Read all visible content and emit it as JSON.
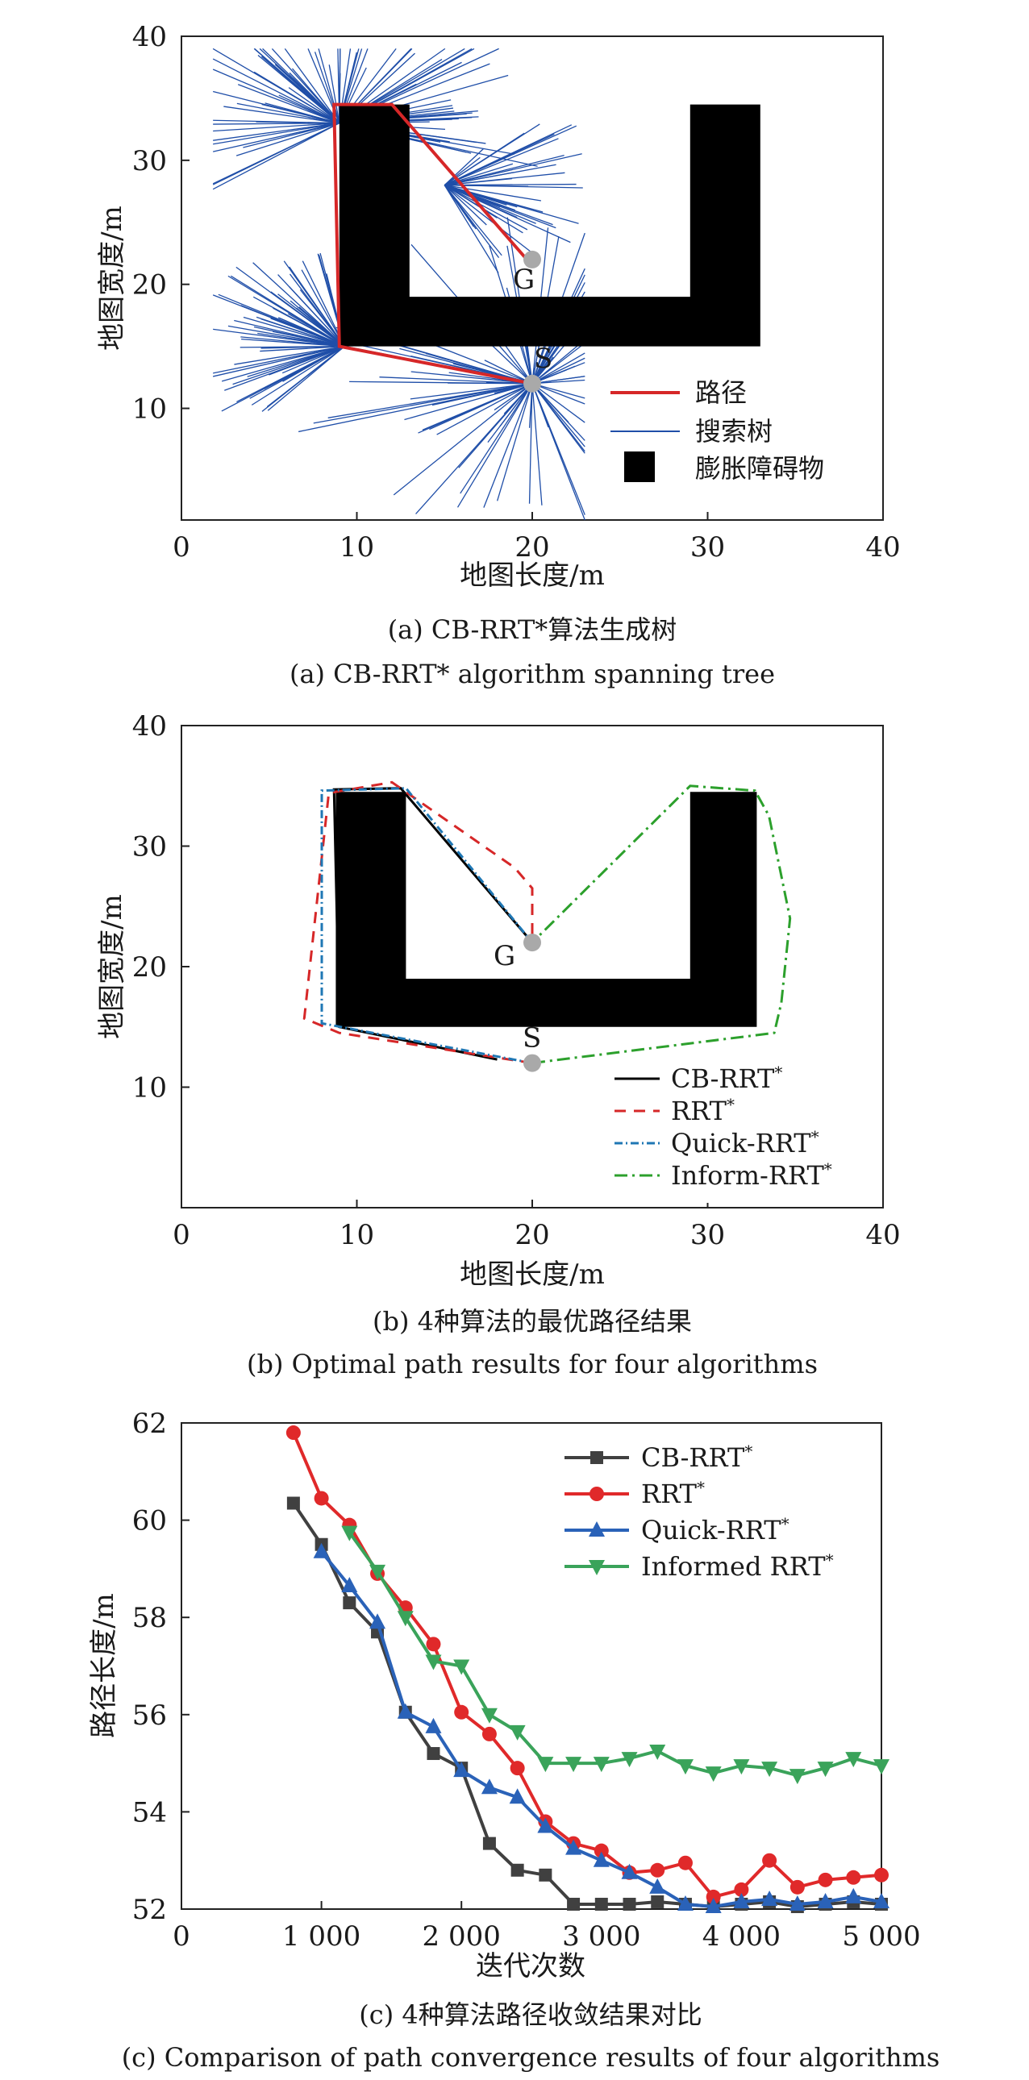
{
  "chart_data": [
    {
      "type": "scatter",
      "panel": "a",
      "xlabel": "地图长度/m",
      "ylabel": "地图宽度/m",
      "xlim": [
        0,
        40
      ],
      "ylim": [
        1,
        40
      ],
      "xticks": [
        "0",
        "10",
        "20",
        "30",
        "40"
      ],
      "yticks": [
        "10",
        "20",
        "30",
        "40"
      ],
      "caption_cn": "(a) CB-RRT*算法生成树",
      "caption_en": "(a) CB-RRT* algorithm spanning tree",
      "start": {
        "label": "S",
        "x": 20,
        "y": 12
      },
      "goal": {
        "label": "G",
        "x": 20,
        "y": 22
      },
      "obstacle": [
        [
          9,
          15
        ],
        [
          33,
          15
        ],
        [
          33,
          34.5
        ],
        [
          29,
          34.5
        ],
        [
          29,
          19
        ],
        [
          13,
          19
        ],
        [
          13,
          34.5
        ],
        [
          9,
          34.5
        ]
      ],
      "path": [
        [
          20,
          12
        ],
        [
          9,
          15
        ],
        [
          8.7,
          34.5
        ],
        [
          12,
          34.5
        ],
        [
          20,
          21.5
        ]
      ],
      "tree_roots": [
        [
          20,
          12
        ],
        [
          9.3,
          15
        ],
        [
          9,
          34
        ],
        [
          16,
          27
        ]
      ],
      "legend": [
        {
          "label": "路径",
          "color": "#d62728",
          "style": "line"
        },
        {
          "label": "搜索树",
          "color": "#1f4ea8",
          "style": "thin"
        },
        {
          "label": "膨胀障碍物",
          "color": "#000000",
          "style": "box"
        }
      ]
    },
    {
      "type": "line",
      "panel": "b",
      "xlabel": "地图长度/m",
      "ylabel": "地图宽度/m",
      "xlim": [
        0,
        40
      ],
      "ylim": [
        0,
        40
      ],
      "xticks": [
        "0",
        "10",
        "20",
        "30",
        "40"
      ],
      "yticks": [
        "10",
        "20",
        "30",
        "40"
      ],
      "caption_cn": "(b) 4种算法的最优路径结果",
      "caption_en": "(b) Optimal path results for four algorithms",
      "start": {
        "label": "S",
        "x": 20,
        "y": 12
      },
      "goal": {
        "label": "G",
        "x": 20,
        "y": 22
      },
      "obstacle": [
        [
          8.8,
          15
        ],
        [
          32.8,
          15
        ],
        [
          32.8,
          34.5
        ],
        [
          29,
          34.5
        ],
        [
          29,
          19
        ],
        [
          12.8,
          19
        ],
        [
          12.8,
          34.5
        ],
        [
          8.8,
          34.5
        ]
      ],
      "series": [
        {
          "name": "CB-RRT*",
          "color": "#000000",
          "dash": "",
          "points": [
            [
              18,
              12.3
            ],
            [
              9,
              15
            ],
            [
              8.7,
              34.7
            ],
            [
              12.5,
              34.8
            ],
            [
              20,
              22
            ]
          ]
        },
        {
          "name": "RRT*",
          "color": "#d62728",
          "dash": "14 10",
          "points": [
            [
              20,
              12
            ],
            [
              9,
              14.5
            ],
            [
              7,
              15.7
            ],
            [
              8.4,
              34.4
            ],
            [
              12,
              35.3
            ],
            [
              19,
              28.2
            ],
            [
              20,
              26.5
            ],
            [
              20,
              22
            ]
          ]
        },
        {
          "name": "Quick-RRT*",
          "color": "#1f77b4",
          "dash": "10 4 2 4",
          "points": [
            [
              20,
              12
            ],
            [
              8,
              15.3
            ],
            [
              8,
              34.6
            ],
            [
              12.8,
              34.8
            ],
            [
              20,
              22
            ]
          ]
        },
        {
          "name": "Inform-RRT*",
          "color": "#2ca02c",
          "dash": "16 6 3 6",
          "points": [
            [
              20,
              12
            ],
            [
              33.8,
              14.5
            ],
            [
              34.2,
              17
            ],
            [
              34.7,
              24
            ],
            [
              33.5,
              32.5
            ],
            [
              32.7,
              34.6
            ],
            [
              29,
              35
            ],
            [
              20,
              22
            ]
          ]
        }
      ],
      "legend_labels": [
        "CB-RRT",
        "RRT",
        "Quick-RRT",
        "Inform-RRT"
      ],
      "legend_sup": "*"
    },
    {
      "type": "line",
      "panel": "c",
      "xlabel": "迭代次数",
      "ylabel": "路径长度/m",
      "xlim": [
        0,
        5000
      ],
      "ylim": [
        52,
        62
      ],
      "xticks": [
        "0",
        "1 000",
        "2 000",
        "3 000",
        "4 000",
        "5 000"
      ],
      "yticks": [
        "52",
        "54",
        "56",
        "58",
        "60",
        "62"
      ],
      "caption_cn": "(c) 4种算法路径收敛结果对比",
      "caption_en": "(c) Comparison of path convergence results of four algorithms",
      "series": [
        {
          "name": "CB-RRT*",
          "color": "#404040",
          "marker": "square",
          "points": [
            [
              800,
              60.35
            ],
            [
              1000,
              59.5
            ],
            [
              1200,
              58.3
            ],
            [
              1400,
              57.7
            ],
            [
              1600,
              56.05
            ],
            [
              1800,
              55.2
            ],
            [
              2000,
              54.9
            ],
            [
              2200,
              53.35
            ],
            [
              2400,
              52.8
            ],
            [
              2600,
              52.7
            ],
            [
              2800,
              52.1
            ],
            [
              3000,
              52.1
            ],
            [
              3200,
              52.1
            ],
            [
              3400,
              52.15
            ],
            [
              3600,
              52.1
            ],
            [
              3800,
              52.05
            ],
            [
              4000,
              52.1
            ],
            [
              4200,
              52.15
            ],
            [
              4400,
              52.05
            ],
            [
              4600,
              52.1
            ],
            [
              4800,
              52.15
            ],
            [
              5000,
              52.1
            ]
          ]
        },
        {
          "name": "RRT*",
          "color": "#e0292a",
          "marker": "circle",
          "points": [
            [
              800,
              61.8
            ],
            [
              1000,
              60.45
            ],
            [
              1200,
              59.9
            ],
            [
              1400,
              58.9
            ],
            [
              1600,
              58.2
            ],
            [
              1800,
              57.45
            ],
            [
              2000,
              56.05
            ],
            [
              2200,
              55.6
            ],
            [
              2400,
              54.9
            ],
            [
              2600,
              53.8
            ],
            [
              2800,
              53.35
            ],
            [
              3000,
              53.2
            ],
            [
              3200,
              52.75
            ],
            [
              3400,
              52.8
            ],
            [
              3600,
              52.95
            ],
            [
              3800,
              52.25
            ],
            [
              4000,
              52.4
            ],
            [
              4200,
              53.0
            ],
            [
              4400,
              52.45
            ],
            [
              4600,
              52.6
            ],
            [
              4800,
              52.65
            ],
            [
              5000,
              52.7
            ]
          ]
        },
        {
          "name": "Quick-RRT*",
          "color": "#2a62b8",
          "marker": "triangle-up",
          "points": [
            [
              1000,
              59.35
            ],
            [
              1200,
              58.65
            ],
            [
              1400,
              57.9
            ],
            [
              1600,
              56.05
            ],
            [
              1800,
              55.75
            ],
            [
              2000,
              54.85
            ],
            [
              2200,
              54.5
            ],
            [
              2400,
              54.3
            ],
            [
              2600,
              53.7
            ],
            [
              2800,
              53.25
            ],
            [
              3000,
              53.0
            ],
            [
              3200,
              52.75
            ],
            [
              3400,
              52.45
            ],
            [
              3600,
              52.1
            ],
            [
              3800,
              52.05
            ],
            [
              4000,
              52.15
            ],
            [
              4200,
              52.2
            ],
            [
              4400,
              52.1
            ],
            [
              4600,
              52.15
            ],
            [
              4800,
              52.25
            ],
            [
              5000,
              52.15
            ]
          ]
        },
        {
          "name": "Informed RRT*",
          "color": "#3aa35a",
          "marker": "triangle-down",
          "points": [
            [
              1200,
              59.75
            ],
            [
              1400,
              58.95
            ],
            [
              1600,
              58.0
            ],
            [
              1800,
              57.1
            ],
            [
              2000,
              57.0
            ],
            [
              2200,
              56.0
            ],
            [
              2400,
              55.65
            ],
            [
              2600,
              55.0
            ],
            [
              2800,
              55.0
            ],
            [
              3000,
              55.0
            ],
            [
              3200,
              55.1
            ],
            [
              3400,
              55.25
            ],
            [
              3600,
              54.95
            ],
            [
              3800,
              54.8
            ],
            [
              4000,
              54.95
            ],
            [
              4200,
              54.9
            ],
            [
              4400,
              54.75
            ],
            [
              4600,
              54.9
            ],
            [
              4800,
              55.1
            ],
            [
              5000,
              54.95
            ]
          ]
        }
      ],
      "legend_labels": [
        "CB-RRT",
        "RRT",
        "Quick-RRT",
        "Informed RRT"
      ],
      "legend_sup": "*"
    }
  ]
}
